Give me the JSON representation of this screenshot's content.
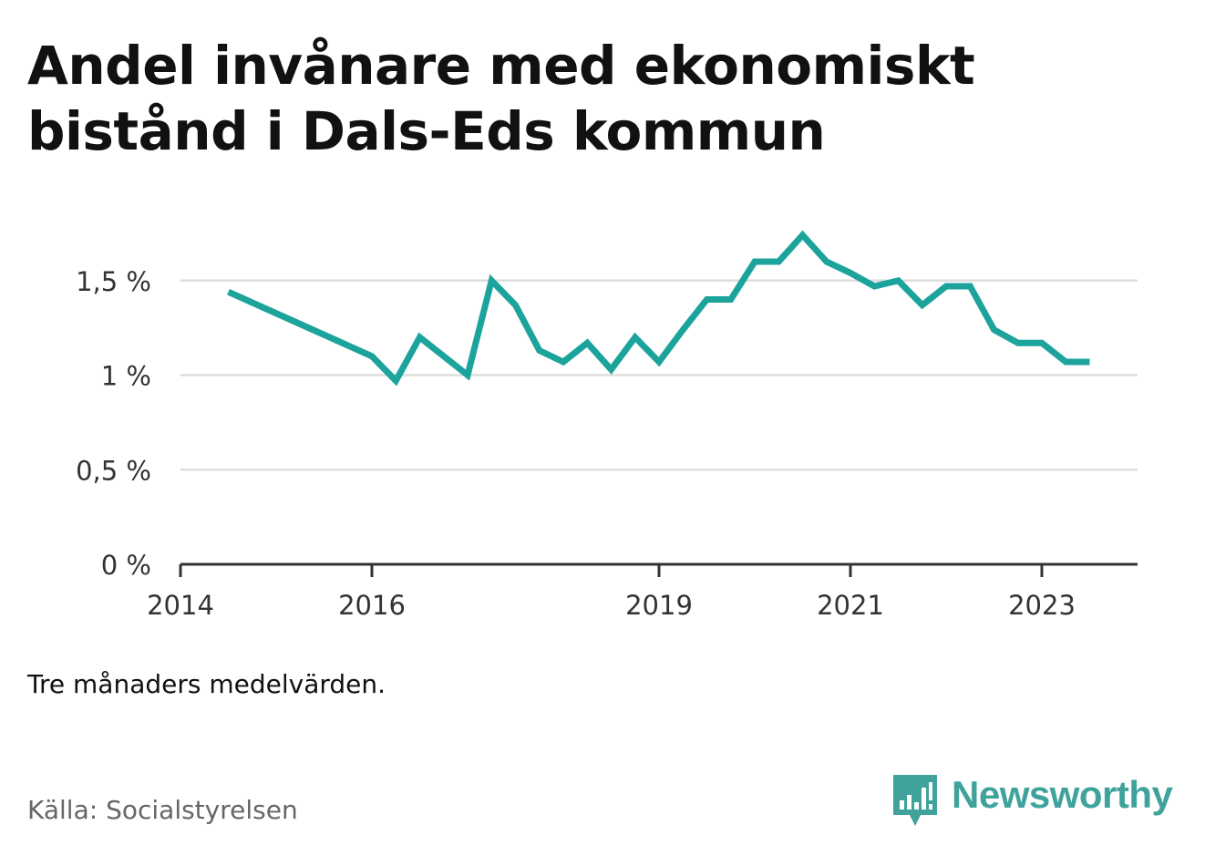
{
  "title": "Andel invånare med ekonomiskt bistånd i Dals-Eds kommun",
  "note": "Tre månaders medelvärden.",
  "source": "Källa: Socialstyrelsen",
  "brand": {
    "name": "Newsworthy",
    "logo_icon": "newsworthy-chart-bubble-icon",
    "color": "#3fa39c"
  },
  "chart_data": {
    "type": "line",
    "title": "Andel invånare med ekonomiskt bistånd i Dals-Eds kommun",
    "xlabel": "",
    "ylabel": "",
    "xlim": [
      "2014-01",
      "2024-01"
    ],
    "ylim": [
      0,
      1.9
    ],
    "x_ticks": [
      {
        "value": "2014-01",
        "label": "2014"
      },
      {
        "value": "2016-01",
        "label": "2016"
      },
      {
        "value": "2019-01",
        "label": "2019"
      },
      {
        "value": "2021-01",
        "label": "2021"
      },
      {
        "value": "2023-01",
        "label": "2023"
      }
    ],
    "y_ticks": [
      {
        "value": 0,
        "label": "0 %"
      },
      {
        "value": 0.5,
        "label": "0,5 %"
      },
      {
        "value": 1,
        "label": "1 %"
      },
      {
        "value": 1.5,
        "label": "1,5 %"
      }
    ],
    "grid": "horizontal",
    "line_color": "#1ba39c",
    "series": [
      {
        "points": [
          {
            "x": "2014-07",
            "y": 1.44
          },
          {
            "x": "2016-01",
            "y": 1.1
          },
          {
            "x": "2016-04",
            "y": 0.97
          },
          {
            "x": "2016-07",
            "y": 1.2
          },
          {
            "x": "2016-10",
            "y": 1.1
          },
          {
            "x": "2017-01",
            "y": 1.0
          },
          {
            "x": "2017-04",
            "y": 1.5
          },
          {
            "x": "2017-07",
            "y": 1.37
          },
          {
            "x": "2017-10",
            "y": 1.13
          },
          {
            "x": "2018-01",
            "y": 1.07
          },
          {
            "x": "2018-04",
            "y": 1.17
          },
          {
            "x": "2018-07",
            "y": 1.03
          },
          {
            "x": "2018-10",
            "y": 1.2
          },
          {
            "x": "2019-01",
            "y": 1.07
          },
          {
            "x": "2019-04",
            "y": 1.24
          },
          {
            "x": "2019-07",
            "y": 1.4
          },
          {
            "x": "2019-10",
            "y": 1.4
          },
          {
            "x": "2020-01",
            "y": 1.6
          },
          {
            "x": "2020-04",
            "y": 1.6
          },
          {
            "x": "2020-07",
            "y": 1.74
          },
          {
            "x": "2020-10",
            "y": 1.6
          },
          {
            "x": "2021-01",
            "y": 1.54
          },
          {
            "x": "2021-04",
            "y": 1.47
          },
          {
            "x": "2021-07",
            "y": 1.5
          },
          {
            "x": "2021-10",
            "y": 1.37
          },
          {
            "x": "2022-01",
            "y": 1.47
          },
          {
            "x": "2022-04",
            "y": 1.47
          },
          {
            "x": "2022-07",
            "y": 1.24
          },
          {
            "x": "2022-10",
            "y": 1.17
          },
          {
            "x": "2023-01",
            "y": 1.17
          },
          {
            "x": "2023-04",
            "y": 1.07
          },
          {
            "x": "2023-07",
            "y": 1.07
          }
        ]
      }
    ]
  }
}
